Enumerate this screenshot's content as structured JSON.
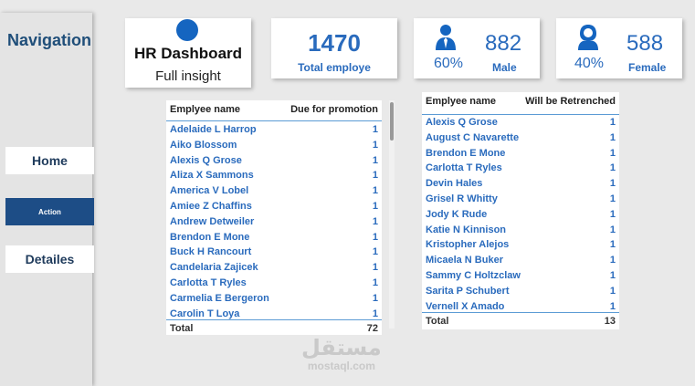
{
  "sidebar": {
    "title": "Navigation",
    "items": [
      {
        "label": "Home"
      },
      {
        "label": "Action"
      },
      {
        "label": "Detailes"
      }
    ]
  },
  "header": {
    "title": "HR Dashboard",
    "subtitle": "Full insight"
  },
  "kpis": {
    "total": {
      "value": "1470",
      "label": "Total employe"
    },
    "male": {
      "value": "882",
      "label": "Male",
      "percent": "60%"
    },
    "female": {
      "value": "588",
      "label": "Female",
      "percent": "40%"
    }
  },
  "promotion_table": {
    "col1": "Emplyee name",
    "col2": "Due for promotion",
    "rows": [
      {
        "name": "Adelaide L Harrop",
        "value": "1"
      },
      {
        "name": "Aiko Blossom",
        "value": "1"
      },
      {
        "name": "Alexis Q Grose",
        "value": "1"
      },
      {
        "name": "Aliza X Sammons",
        "value": "1"
      },
      {
        "name": "America V Lobel",
        "value": "1"
      },
      {
        "name": "Amiee Z Chaffins",
        "value": "1"
      },
      {
        "name": "Andrew Detweiler",
        "value": "1"
      },
      {
        "name": "Brendon E Mone",
        "value": "1"
      },
      {
        "name": "Buck H Rancourt",
        "value": "1"
      },
      {
        "name": "Candelaria Zajicek",
        "value": "1"
      },
      {
        "name": "Carlotta T Ryles",
        "value": "1"
      },
      {
        "name": "Carmelia E Bergeron",
        "value": "1"
      },
      {
        "name": "Carolin T Loya",
        "value": "1"
      }
    ],
    "total_label": "Total",
    "total_value": "72"
  },
  "retrench_table": {
    "col1": "Emplyee name",
    "col2": "Will be Retrenched",
    "rows": [
      {
        "name": "Alexis Q Grose",
        "value": "1"
      },
      {
        "name": "August C Navarette",
        "value": "1"
      },
      {
        "name": "Brendon E Mone",
        "value": "1"
      },
      {
        "name": "Carlotta T Ryles",
        "value": "1"
      },
      {
        "name": "Devin Hales",
        "value": "1"
      },
      {
        "name": "Grisel R Whitty",
        "value": "1"
      },
      {
        "name": "Jody K Rude",
        "value": "1"
      },
      {
        "name": "Katie N Kinnison",
        "value": "1"
      },
      {
        "name": "Kristopher Alejos",
        "value": "1"
      },
      {
        "name": "Micaela N Buker",
        "value": "1"
      },
      {
        "name": "Sammy C Holtzclaw",
        "value": "1"
      },
      {
        "name": "Sarita P Schubert",
        "value": "1"
      },
      {
        "name": "Vernell X Amado",
        "value": "1"
      }
    ],
    "total_label": "Total",
    "total_value": "13"
  },
  "watermark": {
    "arabic": "مستقل",
    "latin": "mostaql.com"
  },
  "colors": {
    "accent": "#2a6bbd",
    "nav_active": "#1d4d86",
    "divider": "#5b9bd5"
  }
}
